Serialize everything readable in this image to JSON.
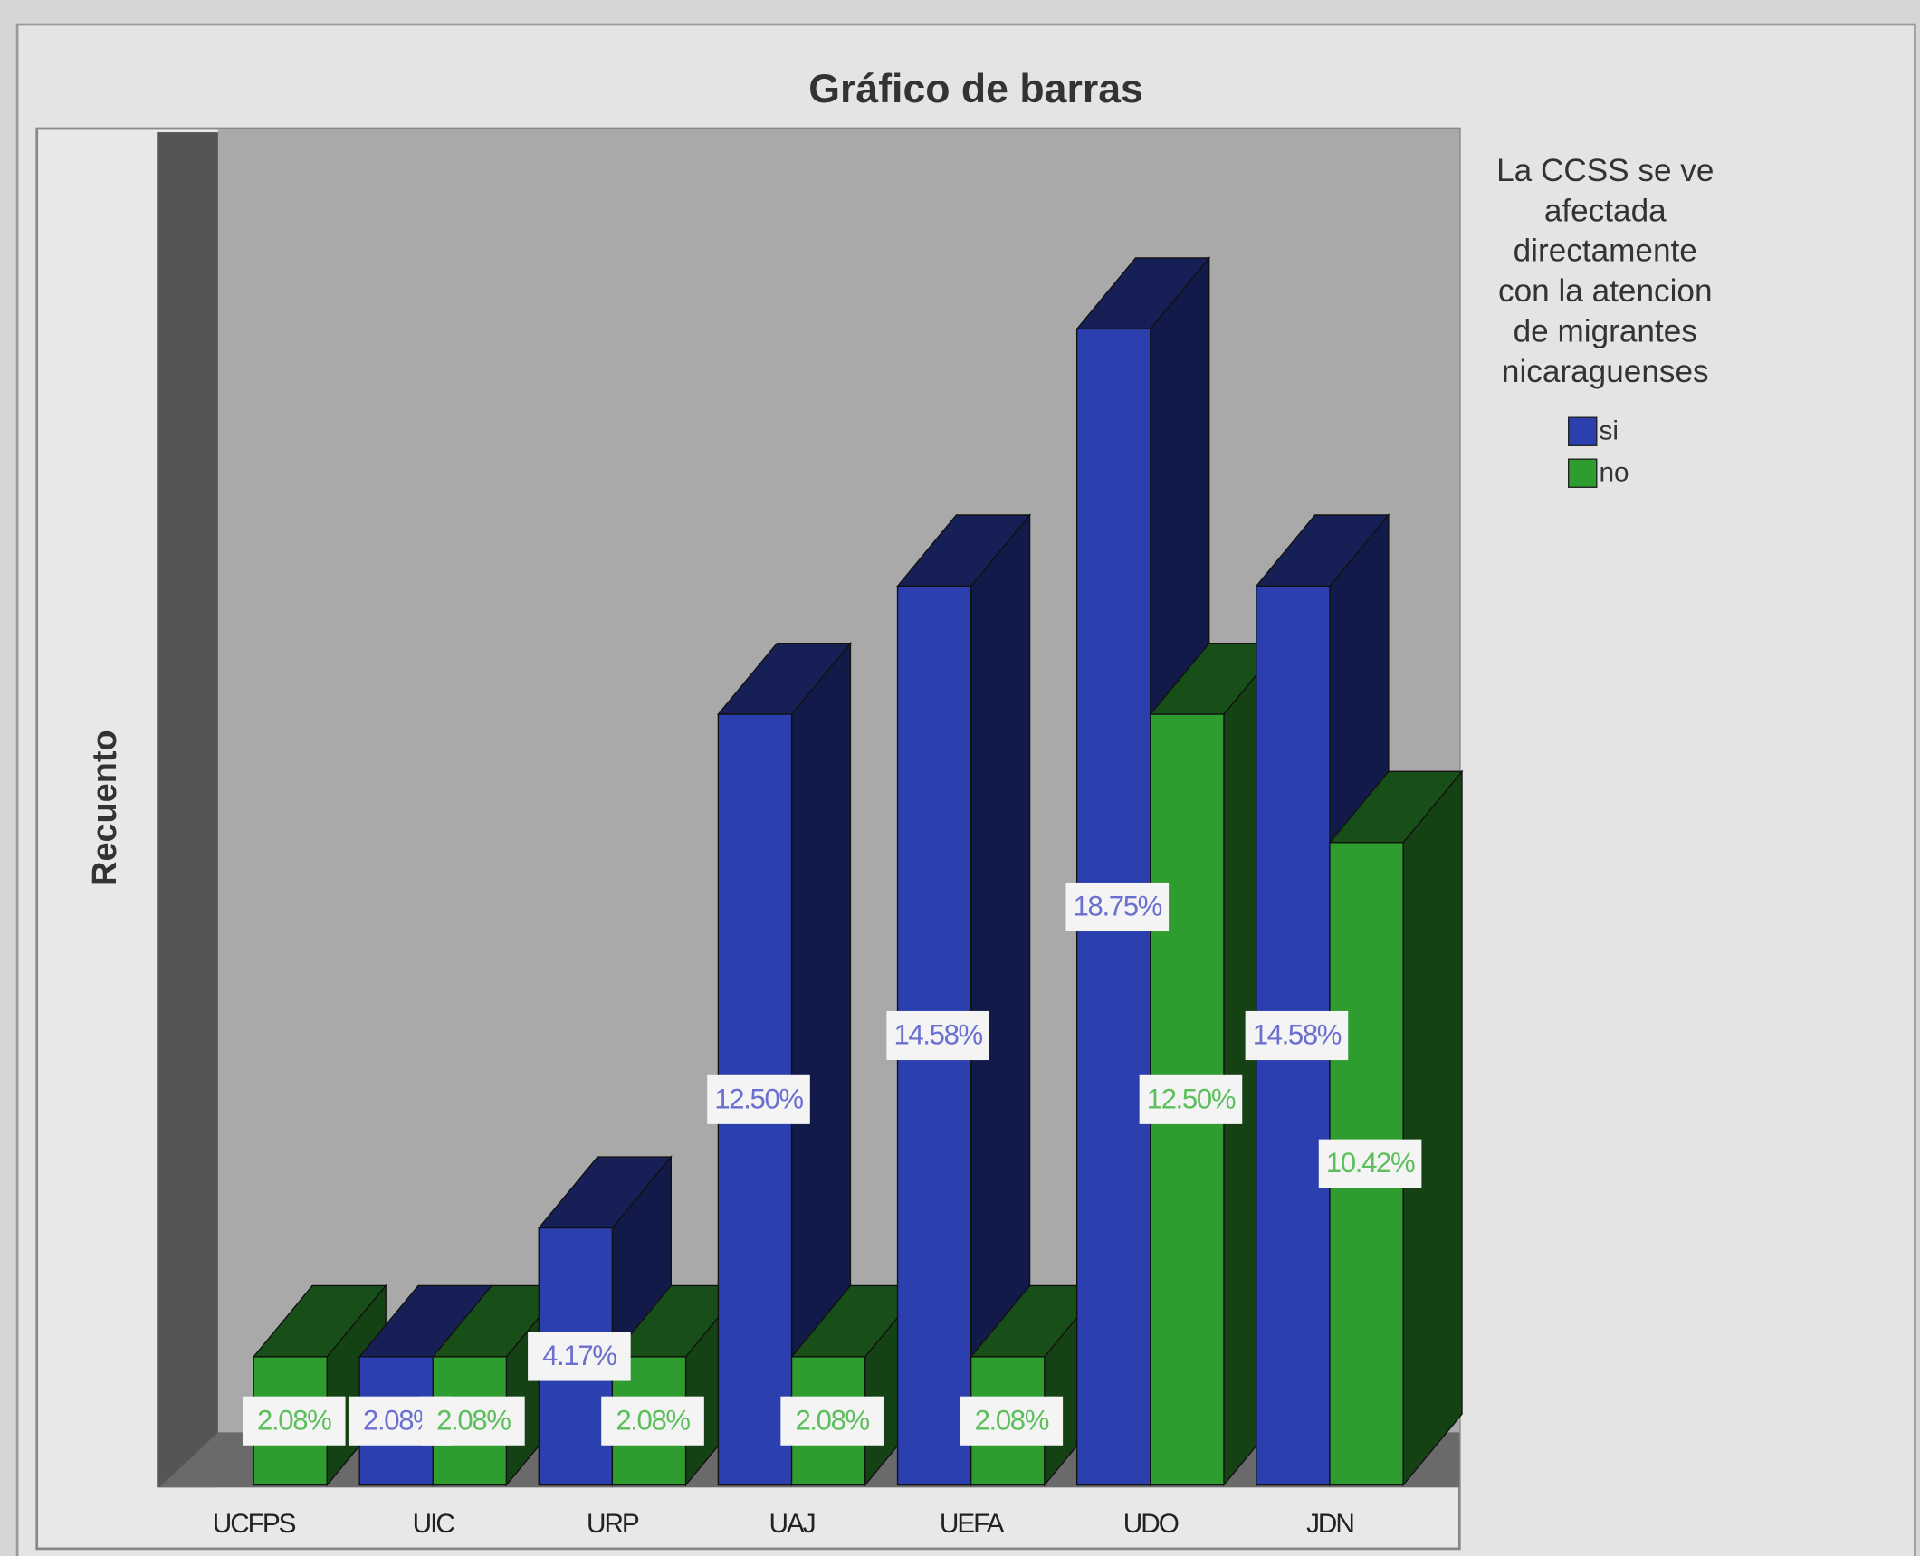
{
  "chart_data": {
    "type": "bar3d",
    "title": "Gráfico de barras",
    "y_label": "Recuento",
    "categories": [
      "UCFPS",
      "UIC",
      "URP",
      "UAJ",
      "UEFA",
      "UDO",
      "JDN"
    ],
    "legend_title": [
      "La CCSS se ve",
      "afectada",
      "directamente",
      "con la atencion",
      "de migrantes",
      "nicaraguenses"
    ],
    "series": [
      {
        "name": "si",
        "color": "#2b3fae",
        "values": [
          null,
          2.08,
          4.17,
          12.5,
          14.58,
          18.75,
          14.58
        ],
        "value_labels": [
          null,
          "2.08%",
          "4.17%",
          "12.50%",
          "14.58%",
          "18.75%",
          "14.58%"
        ]
      },
      {
        "name": "no",
        "color": "#2f9c2f",
        "values": [
          2.08,
          2.08,
          2.08,
          2.08,
          2.08,
          12.5,
          10.42
        ],
        "value_labels": [
          "2.08%",
          "2.08%",
          "2.08%",
          "2.08%",
          "2.08%",
          "12.50%",
          "10.42%"
        ]
      }
    ],
    "ylim": [
      0,
      22
    ]
  }
}
